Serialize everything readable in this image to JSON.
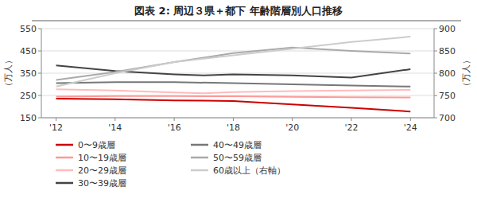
{
  "chart_data": {
    "type": "line",
    "title": "図表 2:   周辺３県＋都下 年齢階層別人口推移",
    "xlim": [
      2011.5,
      2024.8
    ],
    "xticks": [
      {
        "value": 2012,
        "label": "'12"
      },
      {
        "value": 2014,
        "label": "'14"
      },
      {
        "value": 2016,
        "label": "'16"
      },
      {
        "value": 2018,
        "label": "'18"
      },
      {
        "value": 2020,
        "label": "'20"
      },
      {
        "value": 2022,
        "label": "'22"
      },
      {
        "value": 2024,
        "label": "'24"
      }
    ],
    "ylim": [
      150,
      550
    ],
    "yticks": [
      150,
      250,
      350,
      450,
      550
    ],
    "y2lim": [
      700,
      900
    ],
    "y2ticks": [
      700,
      750,
      800,
      850,
      900
    ],
    "ylabel": "（万人）",
    "y2label": "（万人）",
    "grid": true,
    "legend": "bottom",
    "series": [
      {
        "name": "0〜9歳層",
        "color": "#cc0000",
        "x": [
          2012,
          2014,
          2016,
          2017,
          2018,
          2020,
          2022,
          2024
        ],
        "values": [
          236,
          233,
          228,
          227,
          225,
          210,
          195,
          178
        ]
      },
      {
        "name": "10〜19歳層",
        "color": "#ff9999",
        "x": [
          2012,
          2014,
          2016,
          2018,
          2020,
          2022,
          2024
        ],
        "values": [
          245,
          247,
          247,
          246,
          244,
          242,
          241
        ]
      },
      {
        "name": "20〜29歳層",
        "color": "#ffbbbb",
        "x": [
          2012,
          2014,
          2016,
          2017,
          2018,
          2020,
          2022,
          2024
        ],
        "values": [
          278,
          272,
          263,
          260,
          265,
          270,
          272,
          275
        ]
      },
      {
        "name": "30〜39歳層",
        "color": "#444444",
        "x": [
          2012,
          2014,
          2016,
          2017,
          2018,
          2020,
          2022,
          2024
        ],
        "values": [
          385,
          360,
          345,
          340,
          345,
          340,
          330,
          368
        ]
      },
      {
        "name": "40〜49歳層",
        "color": "#777777",
        "x": [
          2012,
          2014,
          2016,
          2018,
          2020,
          2022,
          2024
        ],
        "values": [
          305,
          310,
          310,
          305,
          300,
          295,
          290
        ]
      },
      {
        "name": "50〜59歳層",
        "color": "#aaaaaa",
        "x": [
          2012,
          2014,
          2016,
          2017,
          2018,
          2020,
          2022,
          2024
        ],
        "values": [
          320,
          355,
          400,
          420,
          440,
          465,
          450,
          438
        ]
      },
      {
        "name": "60歳以上（右軸）",
        "color": "#cccccc",
        "axis": "y2",
        "x": [
          2012,
          2014,
          2016,
          2018,
          2020,
          2022,
          2024
        ],
        "values": [
          770,
          800,
          825,
          840,
          855,
          870,
          882
        ]
      }
    ]
  }
}
